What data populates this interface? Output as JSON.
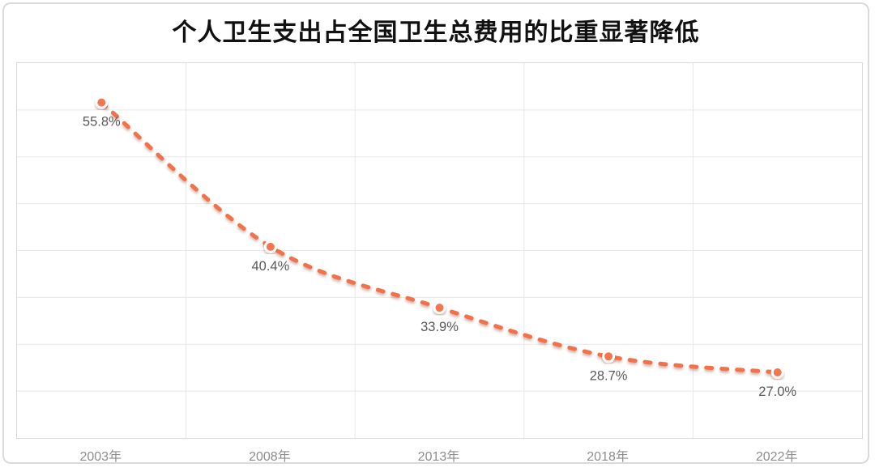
{
  "chart_data": {
    "type": "line",
    "title": "个人卫生支出占全国卫生总费用的比重显著降低",
    "categories": [
      "2003年",
      "2008年",
      "2013年",
      "2018年",
      "2022年"
    ],
    "values": [
      55.8,
      40.4,
      33.9,
      28.7,
      27.0
    ],
    "point_labels": [
      "55.8%",
      "40.4%",
      "33.9%",
      "28.7%",
      "27.0%"
    ],
    "ylim": [
      20,
      60
    ],
    "y_step": 5,
    "grid": true,
    "legend_position": "none",
    "y_axis_labels_visible": false,
    "line_style": "dashed-smooth",
    "colors": {
      "line": "#F2714A",
      "marker_fill": "#F4764F",
      "marker_ring": "#FFFFFF",
      "gridline": "#E7E7E7",
      "plot_border": "#D9D9D9",
      "axis_label": "#8C8C8C",
      "data_label": "#595959",
      "title": "#111111",
      "card_border": "#DADADA",
      "background": "#FFFFFF"
    }
  }
}
